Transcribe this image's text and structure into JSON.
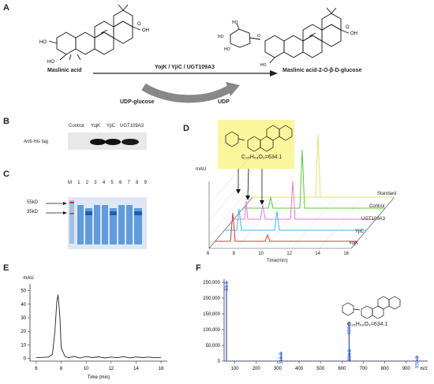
{
  "panels": {
    "a": "A",
    "b": "B",
    "c": "C",
    "d": "D",
    "e": "E",
    "f": "F"
  },
  "panelA": {
    "substrate": "Maslinic acid",
    "product": "Maslinic acid-2-O-β-D-glucose",
    "enzymes": "YojK / YjiC / UGT109A3",
    "donor": "UDP-glucose",
    "byproduct": "UDP",
    "oh_label": "OH",
    "o_label": "O",
    "ho_label": "HO"
  },
  "panelB": {
    "row_label": "Anti-His tag",
    "lanes": [
      "Control",
      "YojK",
      "YjiC",
      "UGT109A3"
    ]
  },
  "panelC": {
    "lane_labels": [
      "M",
      "1",
      "2",
      "3",
      "4",
      "5",
      "6",
      "7",
      "8",
      "9"
    ],
    "marker_55": "55kD",
    "marker_35": "35kD"
  },
  "panelD": {
    "formula": "C₃₆H₅₈O₉=634.1",
    "ylabel": "mAU",
    "xlabel": "Time(min)",
    "traces": [
      "Standard",
      "Control",
      "UGT109A3",
      "YjiC",
      "YojK"
    ],
    "trace_colors": [
      "#e8e06a",
      "#55cc33",
      "#ee77dd",
      "#33bbee",
      "#dd3333"
    ],
    "ticks": [
      "6",
      "8",
      "10",
      "12",
      "14",
      "16"
    ]
  },
  "chart_data": [
    {
      "type": "line",
      "title": "",
      "xlabel": "Time (min)",
      "ylabel": "mAU",
      "xlim": [
        5.5,
        16.5
      ],
      "ylim": [
        -2,
        55
      ],
      "xticks": [
        6,
        8,
        10,
        12,
        14,
        16
      ],
      "yticks": [
        0,
        10,
        20,
        30,
        40,
        50
      ],
      "series": [
        {
          "x": [
            6.0,
            6.5,
            7.0,
            7.3,
            7.5,
            7.65,
            7.75,
            7.9,
            8.0,
            8.3,
            8.6,
            9.0,
            9.5,
            10.0,
            10.5,
            11.0,
            11.5,
            12.0,
            12.5,
            13.0,
            13.5,
            14.0,
            14.5,
            15.0,
            15.5,
            16.0
          ],
          "values": [
            0.5,
            0.8,
            1.0,
            3.0,
            20.0,
            42.0,
            47.0,
            30.0,
            8.0,
            1.5,
            0.5,
            1.5,
            0.4,
            1.4,
            0.6,
            1.2,
            0.3,
            1.0,
            0.5,
            1.3,
            0.4,
            1.1,
            0.6,
            1.0,
            0.5,
            0.8
          ]
        }
      ]
    },
    {
      "type": "bar",
      "title": "",
      "xlabel": "m/z",
      "ylabel": "",
      "xlim": [
        50,
        1000
      ],
      "ylim": [
        0,
        260000
      ],
      "xticks": [
        100,
        200,
        300,
        400,
        500,
        600,
        700,
        800,
        900
      ],
      "yticks": [
        0,
        50000,
        100000,
        150000,
        200000,
        250000
      ],
      "peaks": [
        {
          "x": 61.1,
          "value": 255000,
          "label": "61.1"
        },
        {
          "x": 315.9,
          "value": 30000,
          "label": "315.9"
        },
        {
          "x": 633.1,
          "value": 125000,
          "label": "633.1"
        },
        {
          "x": 634.6,
          "value": 40000,
          "label": "634.6"
        },
        {
          "x": 950.3,
          "value": 18000,
          "label": "950.3"
        }
      ],
      "formula": "C₃₆H₅₈O₉=634.1"
    }
  ],
  "axisE": {
    "yticks": [
      "0",
      "10",
      "20",
      "30",
      "40",
      "50"
    ],
    "xticks": [
      "6",
      "8",
      "10",
      "12",
      "14",
      "16"
    ],
    "ylabel": "mAU",
    "xlabel": "Time (min)"
  },
  "axisF": {
    "yticks": [
      "0",
      "50,000",
      "100,000",
      "150,000",
      "200,000",
      "250,000"
    ],
    "xticks": [
      "100",
      "200",
      "300",
      "400",
      "500",
      "600",
      "700",
      "800",
      "900"
    ],
    "xlabel": "m/z",
    "formula": "C₃₆H₅₈O₉=634.1"
  }
}
